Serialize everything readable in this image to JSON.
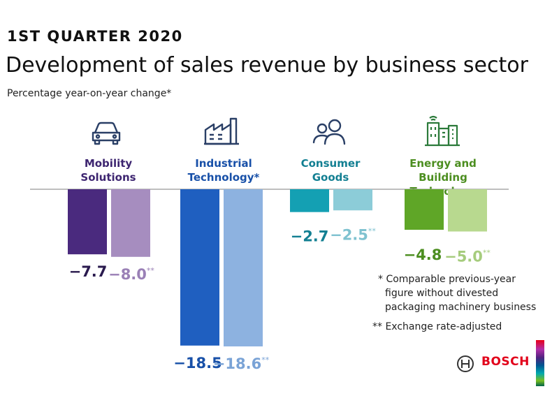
{
  "header": {
    "supertitle": "1ST QUARTER 2020",
    "title": "Development of sales revenue by business sector",
    "subtitle": "Percentage year-on-year change*"
  },
  "chart_data": {
    "type": "bar",
    "categories": [
      "Mobility Solutions",
      "Industrial Technology*",
      "Consumer Goods",
      "Energy and Building Technology"
    ],
    "category_label_lines": [
      [
        "Mobility",
        "Solutions"
      ],
      [
        "Industrial",
        "Technology*"
      ],
      [
        "Consumer",
        "Goods"
      ],
      [
        "Energy and",
        "Building Technology"
      ]
    ],
    "series": [
      {
        "values": [
          -7.7,
          -18.5,
          -2.7,
          -4.8
        ]
      },
      {
        "values": [
          -8.0,
          -18.6,
          -2.5,
          -5.0
        ],
        "label_suffix": "**"
      }
    ],
    "value_labels": [
      [
        "−7.7",
        "−18.5",
        "−2.7",
        "−4.8"
      ],
      [
        "−8.0",
        "−18.6",
        "−2.5",
        "−5.0"
      ]
    ],
    "colors": [
      [
        "#4a2a7e",
        "#a68dbf"
      ],
      [
        "#1f5fc0",
        "#8db2e0"
      ],
      [
        "#14a0b3",
        "#8cccd8"
      ],
      [
        "#5fa627",
        "#b8d98f"
      ]
    ],
    "label_colors": [
      [
        "#2a1a4e",
        "#9a80b6"
      ],
      [
        "#1850a8",
        "#7aa3d6"
      ],
      [
        "#127f92",
        "#7fc2d0"
      ],
      [
        "#4c8e20",
        "#a6cc7d"
      ]
    ],
    "icons": [
      "car-icon",
      "factory-icon",
      "people-icon",
      "smart-buildings-icon"
    ],
    "ylim": [
      -18.6,
      0
    ],
    "zero_line": true
  },
  "footnotes": [
    {
      "marker": "*",
      "lines": [
        "Comparable previous-year",
        "figure without divested",
        "packaging machinery business"
      ]
    },
    {
      "marker": "**",
      "lines": [
        "Exchange rate-adjusted"
      ]
    }
  ],
  "brand": {
    "name": "BOSCH",
    "icon": "bosch-armature-icon"
  }
}
